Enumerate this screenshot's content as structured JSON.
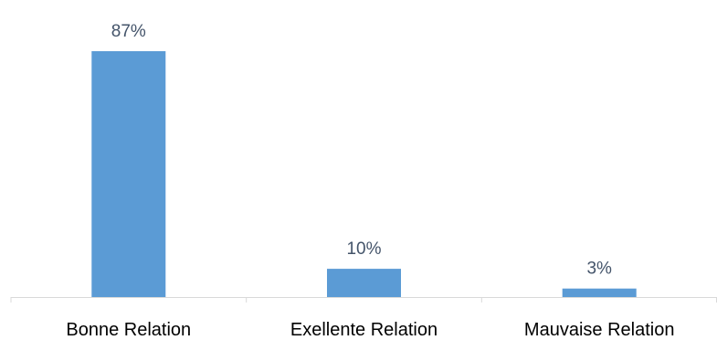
{
  "chart_data": {
    "type": "bar",
    "categories": [
      "Bonne Relation",
      "Exellente Relation",
      "Mauvaise Relation"
    ],
    "values": [
      87,
      10,
      3
    ],
    "value_labels": [
      "87%",
      "10%",
      "3%"
    ],
    "title": "",
    "xlabel": "",
    "ylabel": "",
    "ylim": [
      0,
      87
    ],
    "grid": false,
    "legend": "none",
    "colors": {
      "bar": "#5b9bd5",
      "data_label": "#44546a",
      "axis": "#d9d9d9",
      "tick_label": "#000000"
    }
  }
}
